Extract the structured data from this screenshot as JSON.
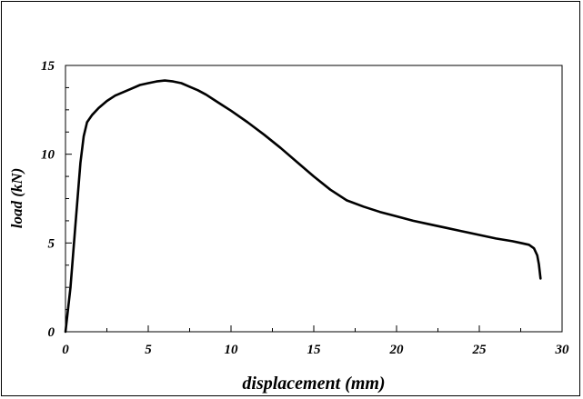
{
  "chart_data": {
    "type": "line",
    "title": "",
    "xlabel": "displacement (mm)",
    "ylabel": "load (kN)",
    "xlim": [
      0,
      30
    ],
    "ylim": [
      0,
      15
    ],
    "xticks": [
      0,
      5,
      10,
      15,
      20,
      25,
      30
    ],
    "yticks": [
      0,
      5,
      10,
      15
    ],
    "xtick_labels": [
      "0",
      "5",
      "10",
      "15",
      "20",
      "25",
      "30"
    ],
    "ytick_labels": [
      "0",
      "5",
      "10",
      "15"
    ],
    "grid": false,
    "legend": "none",
    "line_color": "#000000",
    "series": [
      {
        "x": [
          0,
          0.3,
          0.6,
          0.9,
          1.1,
          1.3,
          1.6,
          2.0,
          2.5,
          3.0,
          3.5,
          4.0,
          4.5,
          5.0,
          5.5,
          6.0,
          6.5,
          7.0,
          7.5,
          8.0,
          8.5,
          9.0,
          9.5,
          10.0,
          11.0,
          12.0,
          13.0,
          14.0,
          15.0,
          16.0,
          17.0,
          18.0,
          19.0,
          20.0,
          21.0,
          22.0,
          23.0,
          24.0,
          25.0,
          26.0,
          27.0,
          27.5,
          28.0,
          28.3,
          28.5,
          28.6,
          28.7
        ],
        "y": [
          0,
          2.5,
          6.0,
          9.5,
          11.0,
          11.8,
          12.2,
          12.6,
          13.0,
          13.3,
          13.5,
          13.7,
          13.9,
          14.0,
          14.1,
          14.15,
          14.1,
          14.0,
          13.8,
          13.6,
          13.35,
          13.05,
          12.75,
          12.45,
          11.8,
          11.1,
          10.35,
          9.55,
          8.75,
          8.0,
          7.4,
          7.05,
          6.75,
          6.5,
          6.25,
          6.05,
          5.85,
          5.65,
          5.45,
          5.25,
          5.1,
          5.0,
          4.9,
          4.7,
          4.3,
          3.8,
          3.0
        ]
      }
    ]
  }
}
